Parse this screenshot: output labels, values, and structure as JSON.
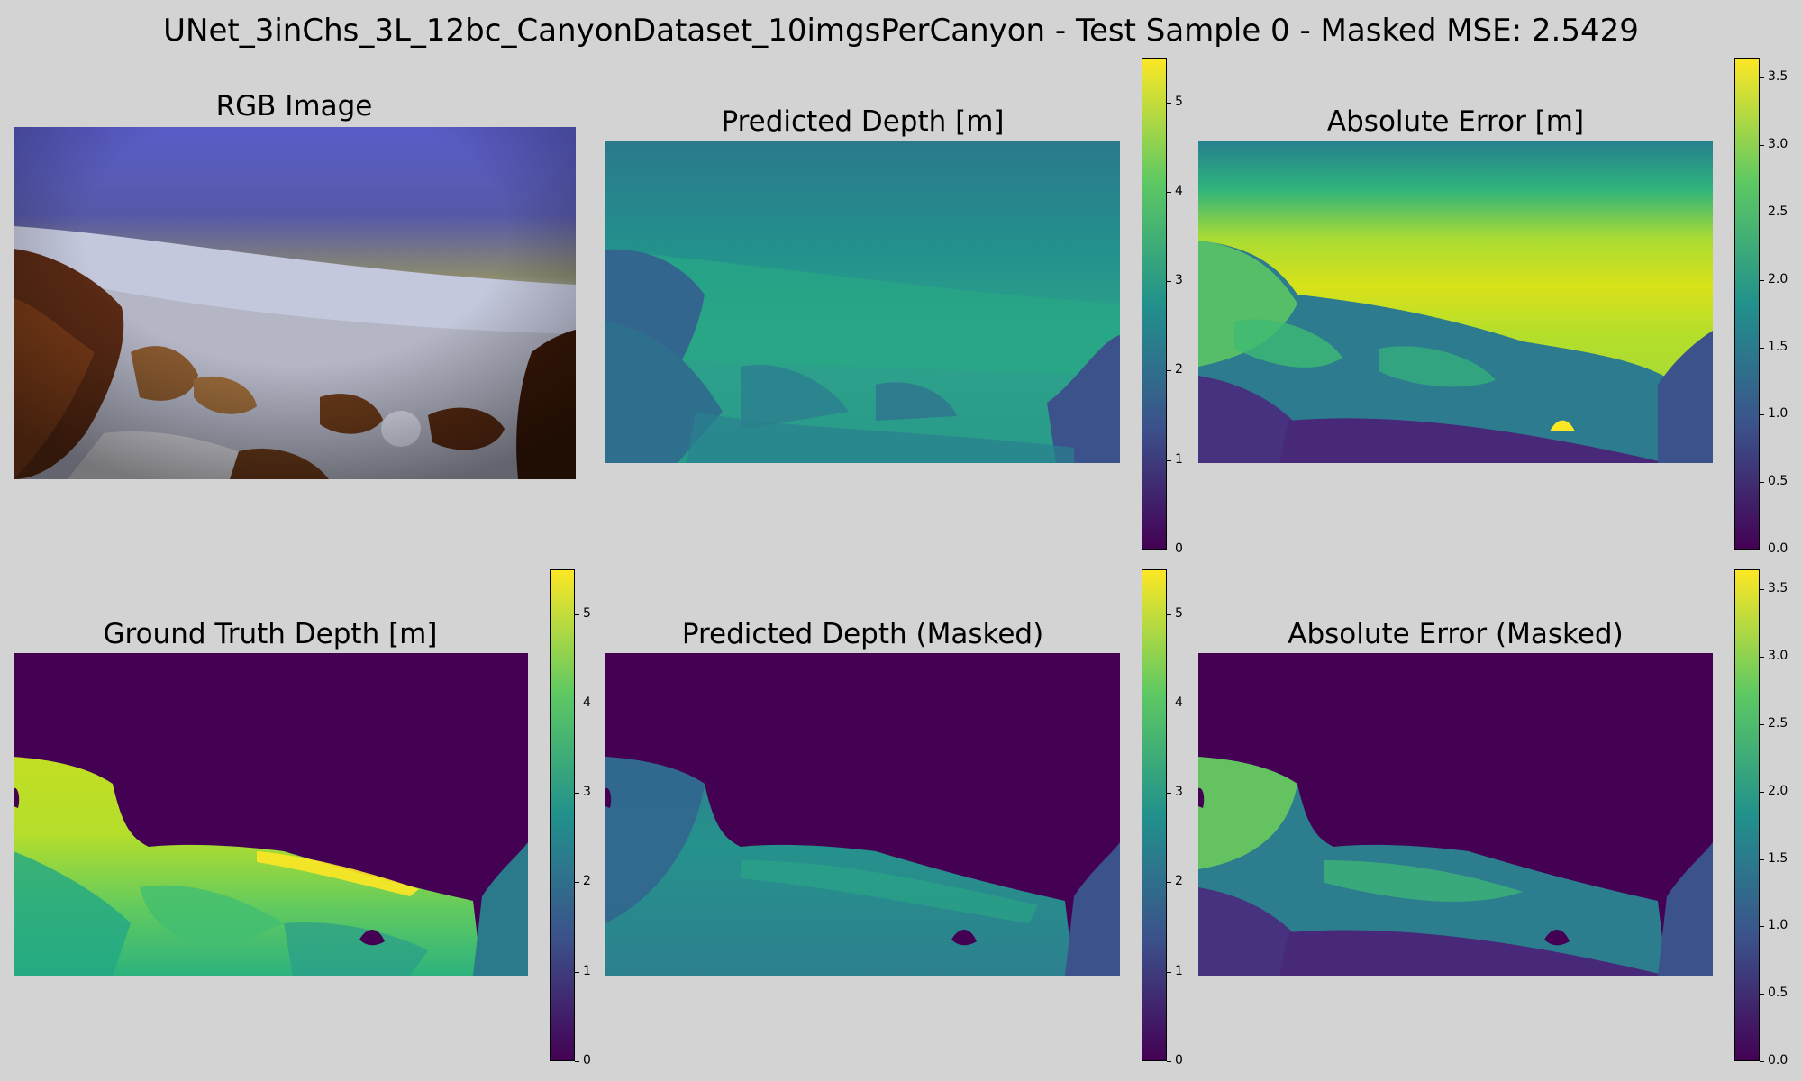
{
  "figure": {
    "suptitle": "UNet_3inChs_3L_12bc_CanyonDataset_10imgsPerCanyon - Test Sample 0 - Masked MSE: 2.5429"
  },
  "panels": [
    {
      "id": "rgb",
      "title": "RGB Image"
    },
    {
      "id": "pred",
      "title": "Predicted Depth [m]"
    },
    {
      "id": "abs",
      "title": "Absolute Error [m]"
    },
    {
      "id": "gt",
      "title": "Ground Truth Depth [m]"
    },
    {
      "id": "pred_masked",
      "title": "Predicted Depth (Masked)"
    },
    {
      "id": "abs_masked",
      "title": "Absolute Error (Masked)"
    }
  ],
  "colorbars": {
    "depth": {
      "cmap": "viridis",
      "range": [
        0,
        5.5
      ],
      "ticks": [
        "0",
        "1",
        "2",
        "3",
        "4",
        "5"
      ],
      "tick_values": [
        0,
        1,
        2,
        3,
        4,
        5
      ]
    },
    "error": {
      "cmap": "viridis",
      "range": [
        0,
        3.65
      ],
      "ticks": [
        "0.0",
        "0.5",
        "1.0",
        "1.5",
        "2.0",
        "2.5",
        "3.0",
        "3.5"
      ],
      "tick_values": [
        0,
        0.5,
        1,
        1.5,
        2,
        2.5,
        3,
        3.5
      ]
    }
  },
  "chart_data": {
    "type": "heatmap",
    "title": "UNet_3inChs_3L_12bc_CanyonDataset_10imgsPerCanyon - Test Sample 0 - Masked MSE: 2.5429",
    "masked_mse": 2.5429,
    "panels": [
      "RGB Image",
      "Predicted Depth [m]",
      "Absolute Error [m]",
      "Ground Truth Depth [m]",
      "Predicted Depth (Masked)",
      "Absolute Error (Masked)"
    ],
    "colorbar_depth_ticks": [
      0,
      1,
      2,
      3,
      4,
      5
    ],
    "colorbar_error_ticks": [
      0.0,
      0.5,
      1.0,
      1.5,
      2.0,
      2.5,
      3.0,
      3.5
    ],
    "colormap": "viridis"
  },
  "colors": {
    "background": "#d3d3d3",
    "viridis": [
      "#440154",
      "#3b528b",
      "#21918c",
      "#5ec962",
      "#fde725"
    ]
  }
}
